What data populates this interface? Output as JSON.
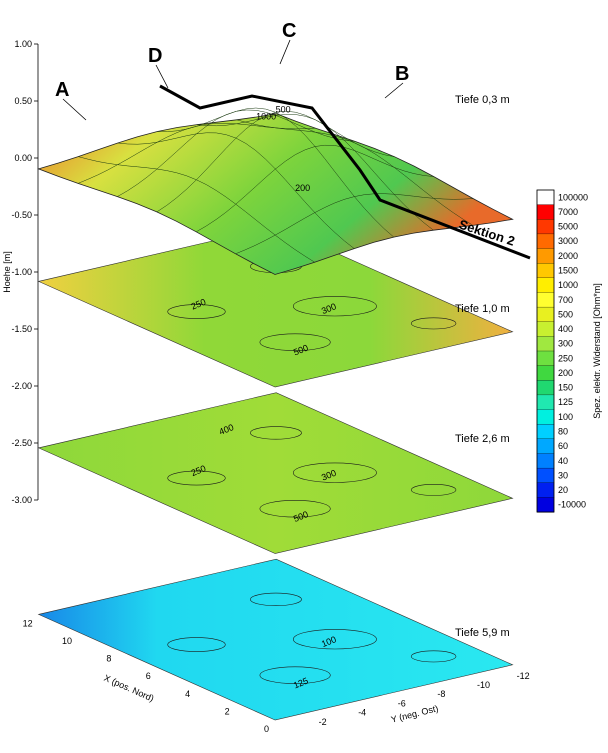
{
  "chart_data": {
    "type": "heatmap",
    "title": "",
    "subtitle": "",
    "z_axis": {
      "label": "Hoehe [m]",
      "ticks": [
        "1.00",
        "0.50",
        "0.00",
        "-0.50",
        "-1.00",
        "-1.50",
        "-2.00",
        "-2.50",
        "-3.00"
      ],
      "range": [
        -3.0,
        1.0
      ]
    },
    "x_axis": {
      "label": "X (pos. Nord)",
      "ticks": [
        "12",
        "10",
        "8",
        "6",
        "4",
        "2",
        "0"
      ],
      "range": [
        0,
        12
      ]
    },
    "y_axis": {
      "label": "Y (neg. Ost)",
      "ticks": [
        "-2",
        "-4",
        "-6",
        "-8",
        "-10",
        "-12"
      ],
      "range": [
        -12,
        0
      ]
    },
    "layers": [
      {
        "name": "Tiefe 0,3 m",
        "elevation": 0.0,
        "fill": "#e8e030",
        "contours": [
          "200",
          "500",
          "1000"
        ]
      },
      {
        "name": "Tiefe 1,0 m",
        "elevation": -1.0,
        "fill": "#a8e030",
        "contours": [
          "500",
          "300",
          "250"
        ]
      },
      {
        "name": "Tiefe 2,6 m",
        "elevation": -2.5,
        "fill": "#8ed83a",
        "contours": [
          "500",
          "300",
          "250",
          "400"
        ]
      },
      {
        "name": "Tiefe 5,9 m",
        "elevation": -4.0,
        "fill": "#22e4f0",
        "contours": [
          "125",
          "100"
        ]
      }
    ],
    "markers": [
      "A",
      "B",
      "C",
      "D"
    ],
    "section": "Sektion 2",
    "colorbar": {
      "label": "Spez. elektr. Widerstand [Ohm*m]",
      "levels": [
        "100000",
        "7000",
        "5000",
        "3000",
        "2000",
        "1500",
        "1000",
        "700",
        "500",
        "400",
        "300",
        "250",
        "200",
        "150",
        "125",
        "100",
        "80",
        "60",
        "40",
        "30",
        "20",
        "-10000"
      ],
      "colors": [
        "#ffffff",
        "#ff0000",
        "#ff3800",
        "#ff6a00",
        "#ff9a00",
        "#ffc800",
        "#ffee00",
        "#ffff30",
        "#e8f020",
        "#c8f030",
        "#a0e840",
        "#6ee040",
        "#40d840",
        "#20d870",
        "#20e8b0",
        "#00f0e0",
        "#00d0ff",
        "#00a8ff",
        "#0080ff",
        "#0050ff",
        "#0020f0",
        "#0000e0"
      ]
    }
  }
}
